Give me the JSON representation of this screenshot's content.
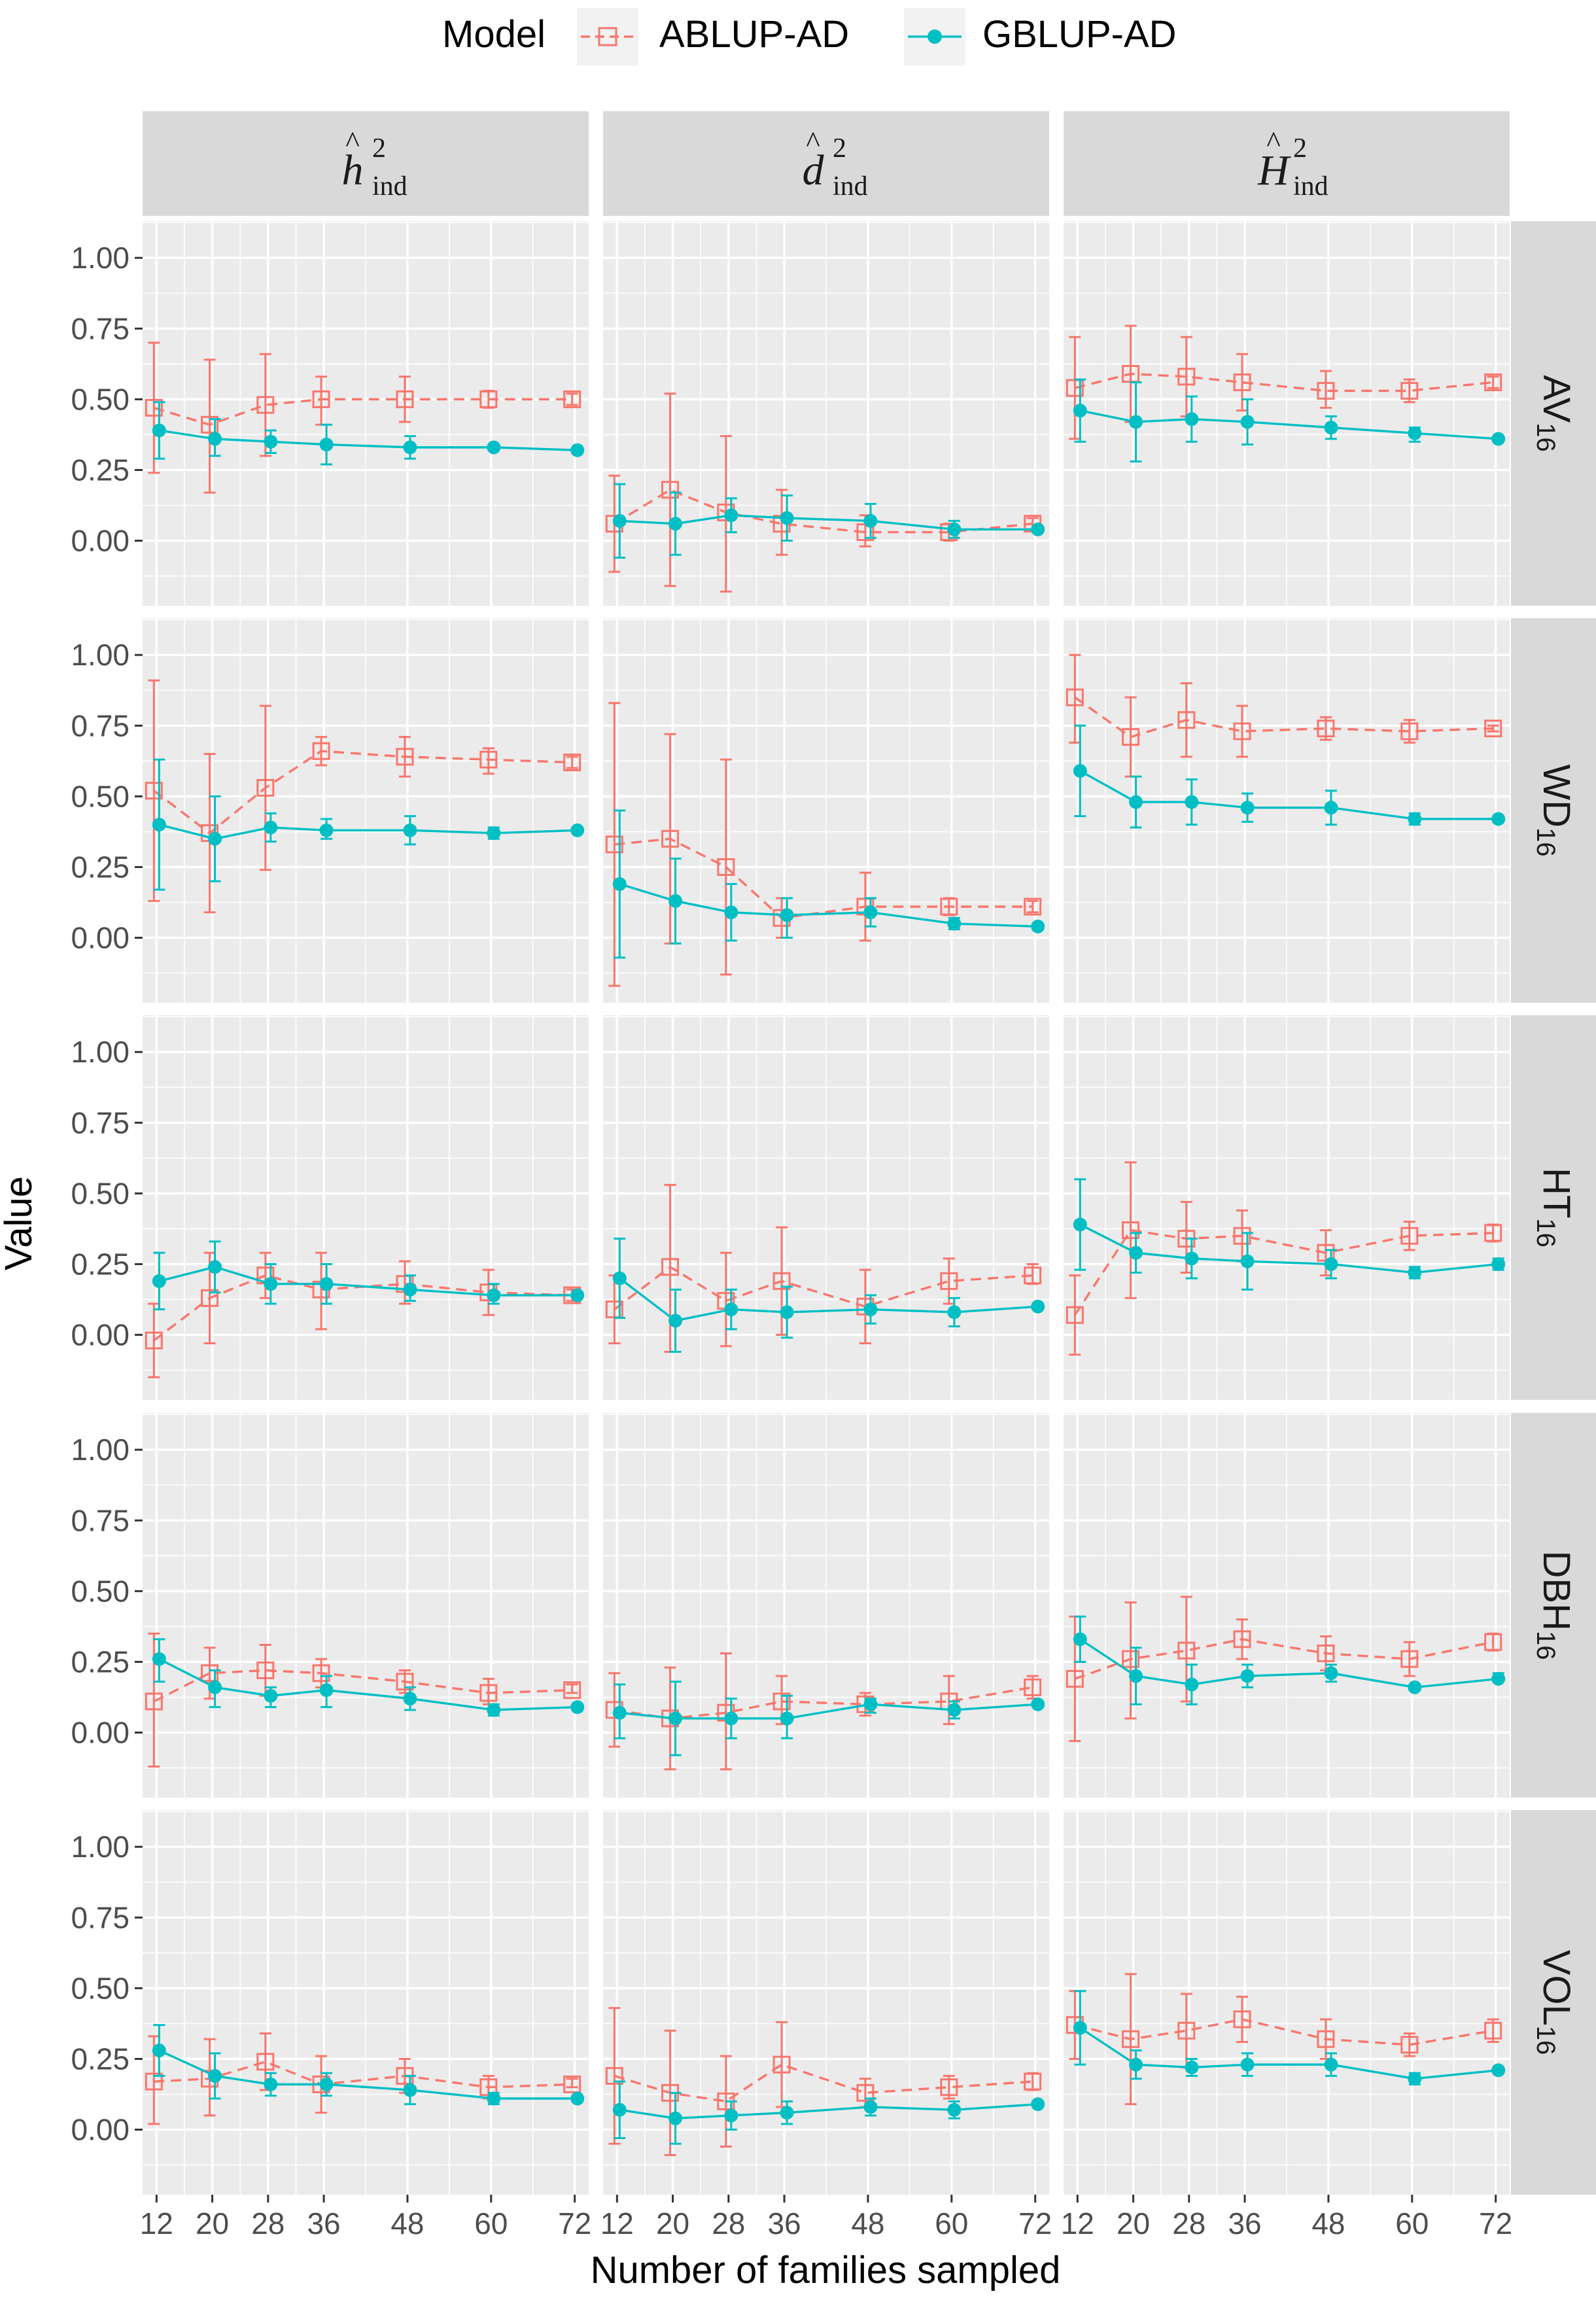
{
  "legend": {
    "title": "Model",
    "items": [
      {
        "name": "ABLUP-AD",
        "color": "#F8766D",
        "marker": "open-square",
        "linetype": "dashed"
      },
      {
        "name": "GBLUP-AD",
        "color": "#00BFC4",
        "marker": "filled-circle",
        "linetype": "solid"
      }
    ]
  },
  "column_strips": [
    {
      "symbol": "h",
      "hat": "^",
      "sup": "2",
      "sub": "ind"
    },
    {
      "symbol": "d",
      "hat": "^",
      "sup": "2",
      "sub": "ind"
    },
    {
      "symbol": "H",
      "hat": "^",
      "sup": "2",
      "sub": "ind"
    }
  ],
  "row_strips": [
    {
      "main": "AV",
      "sub": "16"
    },
    {
      "main": "WD",
      "sub": "16"
    },
    {
      "main": "HT",
      "sub": "16"
    },
    {
      "main": "DBH",
      "sub": "16"
    },
    {
      "main": "VOL",
      "sub": "16"
    }
  ],
  "axes": {
    "xlabel": "Number of families sampled",
    "ylabel": "Value",
    "x_ticks": [
      12,
      20,
      28,
      36,
      48,
      60,
      72
    ],
    "x_tick_labels": [
      "12",
      "20",
      "28",
      "36",
      "48",
      "60",
      "72"
    ],
    "y_ticks": [
      0,
      0.25,
      0.5,
      0.75,
      1
    ],
    "y_tick_labels": [
      "0.00",
      "0.25",
      "0.50",
      "0.75",
      "1.00"
    ],
    "xlim": [
      10,
      74
    ],
    "ylim": [
      -0.23,
      1.13
    ]
  },
  "colors": {
    "panel_bg": "#EBEBEB",
    "grid": "#FFFFFF",
    "strip_bg": "#D9D9D9",
    "ablup": "#F8766D",
    "gblup": "#00BFC4"
  },
  "chart_data": {
    "type": "line",
    "facet_layout": "grid",
    "rows": [
      "AV16",
      "WD16",
      "HT16",
      "DBH16",
      "VOL16"
    ],
    "cols": [
      "h2_ind",
      "d2_ind",
      "H2_ind"
    ],
    "x": [
      12,
      20,
      28,
      36,
      48,
      60,
      72
    ],
    "panels": [
      [
        {
          "ABLUP-AD": {
            "mean": [
              0.47,
              0.41,
              0.48,
              0.5,
              0.5,
              0.5,
              0.5
            ],
            "lo": [
              0.24,
              0.17,
              0.3,
              0.41,
              0.42,
              0.47,
              0.48
            ],
            "hi": [
              0.7,
              0.64,
              0.66,
              0.58,
              0.58,
              0.53,
              0.52
            ]
          },
          "GBLUP-AD": {
            "mean": [
              0.39,
              0.36,
              0.35,
              0.34,
              0.33,
              0.33,
              0.32
            ],
            "lo": [
              0.29,
              0.3,
              0.31,
              0.27,
              0.29,
              0.32,
              0.31
            ],
            "hi": [
              0.49,
              0.43,
              0.39,
              0.41,
              0.37,
              0.34,
              0.33
            ]
          }
        },
        {
          "ABLUP-AD": {
            "mean": [
              0.06,
              0.18,
              0.1,
              0.06,
              0.03,
              0.03,
              0.06
            ],
            "lo": [
              -0.11,
              -0.16,
              -0.18,
              -0.05,
              -0.02,
              0.0,
              0.04
            ],
            "hi": [
              0.23,
              0.52,
              0.37,
              0.18,
              0.09,
              0.06,
              0.08
            ]
          },
          "GBLUP-AD": {
            "mean": [
              0.07,
              0.06,
              0.09,
              0.08,
              0.07,
              0.04,
              0.04
            ],
            "lo": [
              -0.06,
              -0.05,
              0.03,
              0.0,
              0.01,
              0.01,
              0.03
            ],
            "hi": [
              0.2,
              0.17,
              0.15,
              0.16,
              0.13,
              0.07,
              0.05
            ]
          }
        },
        {
          "ABLUP-AD": {
            "mean": [
              0.54,
              0.59,
              0.58,
              0.56,
              0.53,
              0.53,
              0.56
            ],
            "lo": [
              0.36,
              0.42,
              0.44,
              0.46,
              0.47,
              0.49,
              0.54
            ],
            "hi": [
              0.72,
              0.76,
              0.72,
              0.66,
              0.6,
              0.57,
              0.58
            ]
          },
          "GBLUP-AD": {
            "mean": [
              0.46,
              0.42,
              0.43,
              0.42,
              0.4,
              0.38,
              0.36
            ],
            "lo": [
              0.35,
              0.28,
              0.35,
              0.34,
              0.36,
              0.35,
              0.35
            ],
            "hi": [
              0.57,
              0.56,
              0.51,
              0.5,
              0.44,
              0.4,
              0.37
            ]
          }
        }
      ],
      [
        {
          "ABLUP-AD": {
            "mean": [
              0.52,
              0.37,
              0.53,
              0.66,
              0.64,
              0.63,
              0.62
            ],
            "lo": [
              0.13,
              0.09,
              0.24,
              0.61,
              0.57,
              0.58,
              0.6
            ],
            "hi": [
              0.91,
              0.65,
              0.82,
              0.71,
              0.71,
              0.67,
              0.64
            ]
          },
          "GBLUP-AD": {
            "mean": [
              0.4,
              0.35,
              0.39,
              0.38,
              0.38,
              0.37,
              0.38
            ],
            "lo": [
              0.17,
              0.2,
              0.34,
              0.35,
              0.33,
              0.35,
              0.37
            ],
            "hi": [
              0.63,
              0.5,
              0.44,
              0.42,
              0.43,
              0.39,
              0.39
            ]
          }
        },
        {
          "ABLUP-AD": {
            "mean": [
              0.33,
              0.35,
              0.25,
              0.07,
              0.11,
              0.11,
              0.11
            ],
            "lo": [
              -0.17,
              -0.02,
              -0.13,
              0.0,
              -0.01,
              0.08,
              0.09
            ],
            "hi": [
              0.83,
              0.72,
              0.63,
              0.14,
              0.23,
              0.14,
              0.13
            ]
          },
          "GBLUP-AD": {
            "mean": [
              0.19,
              0.13,
              0.09,
              0.08,
              0.09,
              0.05,
              0.04
            ],
            "lo": [
              -0.07,
              -0.02,
              -0.01,
              0.0,
              0.04,
              0.03,
              0.03
            ],
            "hi": [
              0.45,
              0.28,
              0.19,
              0.14,
              0.14,
              0.07,
              0.05
            ]
          }
        },
        {
          "ABLUP-AD": {
            "mean": [
              0.85,
              0.71,
              0.77,
              0.73,
              0.74,
              0.73,
              0.74
            ],
            "lo": [
              0.69,
              0.57,
              0.64,
              0.64,
              0.7,
              0.69,
              0.73
            ],
            "hi": [
              1.0,
              0.85,
              0.9,
              0.82,
              0.78,
              0.77,
              0.75
            ]
          },
          "GBLUP-AD": {
            "mean": [
              0.59,
              0.48,
              0.48,
              0.46,
              0.46,
              0.42,
              0.42
            ],
            "lo": [
              0.43,
              0.39,
              0.4,
              0.41,
              0.4,
              0.4,
              0.41
            ],
            "hi": [
              0.75,
              0.57,
              0.56,
              0.51,
              0.52,
              0.44,
              0.43
            ]
          }
        }
      ],
      [
        {
          "ABLUP-AD": {
            "mean": [
              -0.02,
              0.13,
              0.21,
              0.16,
              0.18,
              0.15,
              0.14
            ],
            "lo": [
              -0.15,
              -0.03,
              0.13,
              0.02,
              0.11,
              0.07,
              0.12
            ],
            "hi": [
              0.11,
              0.29,
              0.29,
              0.29,
              0.26,
              0.23,
              0.16
            ]
          },
          "GBLUP-AD": {
            "mean": [
              0.19,
              0.24,
              0.18,
              0.18,
              0.16,
              0.14,
              0.14
            ],
            "lo": [
              0.09,
              0.15,
              0.11,
              0.11,
              0.12,
              0.11,
              0.13
            ],
            "hi": [
              0.29,
              0.33,
              0.25,
              0.25,
              0.21,
              0.18,
              0.15
            ]
          }
        },
        {
          "ABLUP-AD": {
            "mean": [
              0.09,
              0.24,
              0.12,
              0.19,
              0.1,
              0.19,
              0.21
            ],
            "lo": [
              -0.03,
              -0.06,
              -0.04,
              0.0,
              -0.03,
              0.11,
              0.18
            ],
            "hi": [
              0.21,
              0.53,
              0.29,
              0.38,
              0.23,
              0.27,
              0.25
            ]
          },
          "GBLUP-AD": {
            "mean": [
              0.2,
              0.05,
              0.09,
              0.08,
              0.09,
              0.08,
              0.1
            ],
            "lo": [
              0.06,
              -0.06,
              0.02,
              -0.01,
              0.04,
              0.03,
              0.09
            ],
            "hi": [
              0.34,
              0.16,
              0.16,
              0.17,
              0.14,
              0.13,
              0.11
            ]
          }
        },
        {
          "ABLUP-AD": {
            "mean": [
              0.07,
              0.37,
              0.34,
              0.35,
              0.29,
              0.35,
              0.36
            ],
            "lo": [
              -0.07,
              0.13,
              0.22,
              0.26,
              0.21,
              0.3,
              0.33
            ],
            "hi": [
              0.21,
              0.61,
              0.47,
              0.44,
              0.37,
              0.4,
              0.39
            ]
          },
          "GBLUP-AD": {
            "mean": [
              0.39,
              0.29,
              0.27,
              0.26,
              0.25,
              0.22,
              0.25
            ],
            "lo": [
              0.23,
              0.22,
              0.2,
              0.16,
              0.2,
              0.2,
              0.23
            ],
            "hi": [
              0.55,
              0.36,
              0.34,
              0.36,
              0.3,
              0.24,
              0.27
            ]
          }
        }
      ],
      [
        {
          "ABLUP-AD": {
            "mean": [
              0.11,
              0.21,
              0.22,
              0.21,
              0.18,
              0.14,
              0.15
            ],
            "lo": [
              -0.12,
              0.12,
              0.13,
              0.16,
              0.14,
              0.1,
              0.14
            ],
            "hi": [
              0.35,
              0.3,
              0.31,
              0.26,
              0.22,
              0.19,
              0.17
            ]
          },
          "GBLUP-AD": {
            "mean": [
              0.26,
              0.16,
              0.13,
              0.15,
              0.12,
              0.08,
              0.09
            ],
            "lo": [
              0.18,
              0.09,
              0.09,
              0.09,
              0.08,
              0.06,
              0.08
            ],
            "hi": [
              0.33,
              0.22,
              0.16,
              0.2,
              0.16,
              0.1,
              0.1
            ]
          }
        },
        {
          "ABLUP-AD": {
            "mean": [
              0.08,
              0.05,
              0.07,
              0.11,
              0.1,
              0.11,
              0.16
            ],
            "lo": [
              -0.05,
              -0.13,
              -0.13,
              0.03,
              0.06,
              0.03,
              0.12
            ],
            "hi": [
              0.21,
              0.23,
              0.28,
              0.2,
              0.14,
              0.2,
              0.2
            ]
          },
          "GBLUP-AD": {
            "mean": [
              0.07,
              0.05,
              0.05,
              0.05,
              0.1,
              0.08,
              0.1
            ],
            "lo": [
              -0.02,
              -0.08,
              -0.02,
              -0.02,
              0.07,
              0.05,
              0.09
            ],
            "hi": [
              0.17,
              0.18,
              0.12,
              0.13,
              0.12,
              0.11,
              0.11
            ]
          }
        },
        {
          "ABLUP-AD": {
            "mean": [
              0.19,
              0.26,
              0.29,
              0.33,
              0.28,
              0.26,
              0.32
            ],
            "lo": [
              -0.03,
              0.05,
              0.11,
              0.26,
              0.22,
              0.2,
              0.29
            ],
            "hi": [
              0.41,
              0.46,
              0.48,
              0.4,
              0.34,
              0.32,
              0.35
            ]
          },
          "GBLUP-AD": {
            "mean": [
              0.33,
              0.2,
              0.17,
              0.2,
              0.21,
              0.16,
              0.19
            ],
            "lo": [
              0.25,
              0.1,
              0.1,
              0.16,
              0.18,
              0.15,
              0.18
            ],
            "hi": [
              0.41,
              0.3,
              0.24,
              0.24,
              0.24,
              0.17,
              0.21
            ]
          }
        }
      ],
      [
        {
          "ABLUP-AD": {
            "mean": [
              0.17,
              0.18,
              0.24,
              0.16,
              0.19,
              0.15,
              0.16
            ],
            "lo": [
              0.02,
              0.05,
              0.14,
              0.06,
              0.13,
              0.11,
              0.15
            ],
            "hi": [
              0.33,
              0.32,
              0.34,
              0.26,
              0.25,
              0.19,
              0.18
            ]
          },
          "GBLUP-AD": {
            "mean": [
              0.28,
              0.19,
              0.16,
              0.16,
              0.14,
              0.11,
              0.11
            ],
            "lo": [
              0.19,
              0.11,
              0.12,
              0.12,
              0.09,
              0.09,
              0.1
            ],
            "hi": [
              0.37,
              0.27,
              0.2,
              0.2,
              0.19,
              0.13,
              0.12
            ]
          }
        },
        {
          "ABLUP-AD": {
            "mean": [
              0.19,
              0.13,
              0.1,
              0.23,
              0.13,
              0.15,
              0.17
            ],
            "lo": [
              -0.05,
              -0.09,
              -0.06,
              0.08,
              0.08,
              0.11,
              0.14
            ],
            "hi": [
              0.43,
              0.35,
              0.26,
              0.38,
              0.18,
              0.19,
              0.2
            ]
          },
          "GBLUP-AD": {
            "mean": [
              0.07,
              0.04,
              0.05,
              0.06,
              0.08,
              0.07,
              0.09
            ],
            "lo": [
              -0.03,
              -0.05,
              0.0,
              0.02,
              0.05,
              0.04,
              0.08
            ],
            "hi": [
              0.17,
              0.13,
              0.1,
              0.1,
              0.11,
              0.1,
              0.1
            ]
          }
        },
        {
          "ABLUP-AD": {
            "mean": [
              0.37,
              0.32,
              0.35,
              0.39,
              0.32,
              0.3,
              0.35
            ],
            "lo": [
              0.25,
              0.09,
              0.22,
              0.31,
              0.25,
              0.26,
              0.31
            ],
            "hi": [
              0.49,
              0.55,
              0.48,
              0.47,
              0.39,
              0.34,
              0.39
            ]
          },
          "GBLUP-AD": {
            "mean": [
              0.36,
              0.23,
              0.22,
              0.23,
              0.23,
              0.18,
              0.21
            ],
            "lo": [
              0.23,
              0.18,
              0.19,
              0.19,
              0.19,
              0.16,
              0.2
            ],
            "hi": [
              0.49,
              0.28,
              0.25,
              0.27,
              0.27,
              0.2,
              0.22
            ]
          }
        }
      ]
    ]
  }
}
